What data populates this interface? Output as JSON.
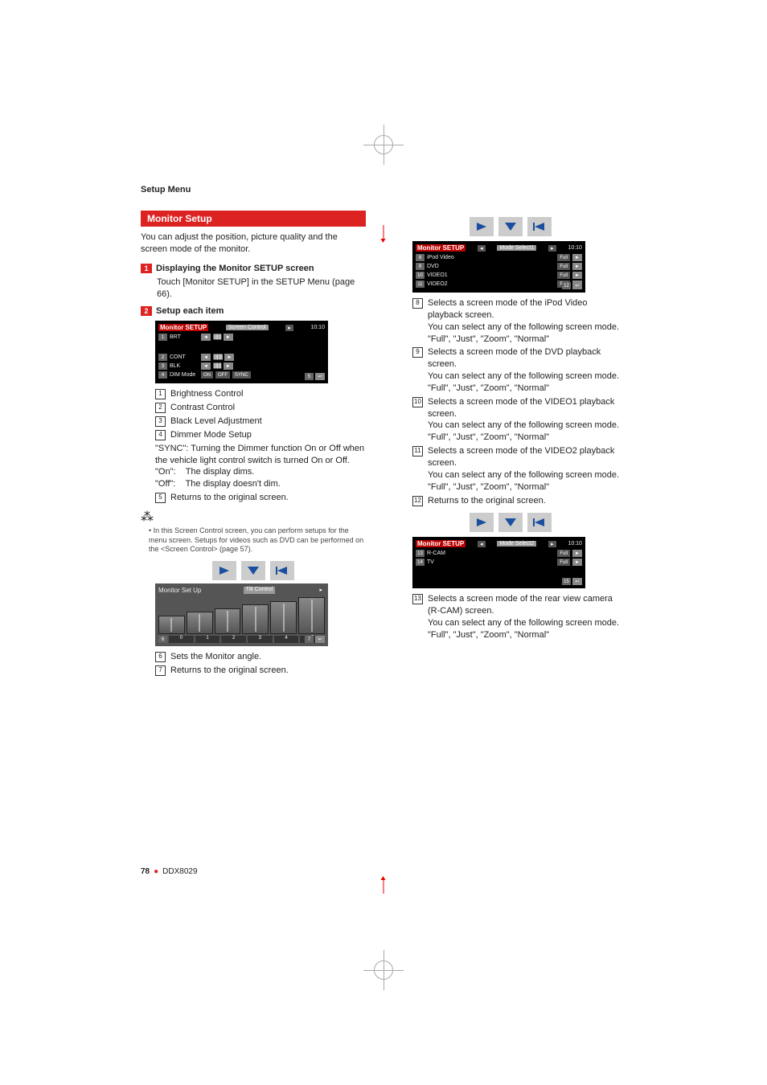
{
  "sectionTitle": "Setup Menu",
  "heading": "Monitor Setup",
  "intro": "You can adjust the position, picture quality and the screen mode of the monitor.",
  "step1": {
    "num": "1",
    "label": "Displaying the Monitor SETUP screen",
    "desc": "Touch [Monitor SETUP] in the SETUP Menu (page 66)."
  },
  "step2": {
    "num": "2",
    "label": "Setup each item"
  },
  "bb1": {
    "title": "Monitor SETUP",
    "tab": "Screen Control",
    "time": "10:10",
    "r1": {
      "idx": "1",
      "lbl": "BRT"
    },
    "r2": {
      "idx": "2",
      "lbl": "CONT"
    },
    "r3": {
      "idx": "3",
      "lbl": "BLK"
    },
    "r4": {
      "idx": "4",
      "lbl": "DIM Mode",
      "b1": "ON",
      "b2": "OFF",
      "b3": "SYNC"
    },
    "back": "5"
  },
  "refs1": [
    {
      "n": "1",
      "t": "Brightness Control"
    },
    {
      "n": "2",
      "t": "Contrast Control"
    },
    {
      "n": "3",
      "t": "Black Level Adjustment"
    },
    {
      "n": "4",
      "t": "Dimmer Mode Setup"
    }
  ],
  "dimmer": {
    "sync": "Turning the Dimmer function On or Off when the vehicle light control switch is turned On or Off.",
    "on": "The display dims.",
    "off": "The display doesn't dim."
  },
  "ref5": {
    "n": "5",
    "t": "Returns to the original screen."
  },
  "note": "In this Screen Control screen, you can perform setups for the menu screen. Setups for videos such as DVD can be performed on the <Screen Control> (page 57).",
  "tilt": {
    "title": "Monitor Set Up",
    "tab": "Tilt Control",
    "idx6": "6",
    "idx7": "7",
    "nums": [
      "0",
      "1",
      "2",
      "3",
      "4",
      "5"
    ]
  },
  "ref6": {
    "n": "6",
    "t": "Sets the Monitor angle."
  },
  "ref7": {
    "n": "7",
    "t": "Returns to the original screen."
  },
  "bb2": {
    "title": "Monitor SETUP",
    "tab": "Mode Select1",
    "time": "10:10",
    "rows": [
      {
        "idx": "8",
        "lbl": "iPod Video",
        "val": "Full"
      },
      {
        "idx": "9",
        "lbl": "DVD",
        "val": "Full"
      },
      {
        "idx": "10",
        "lbl": "VIDEO1",
        "val": "Full"
      },
      {
        "idx": "11",
        "lbl": "VIDEO2",
        "val": "Full"
      }
    ],
    "back": "12"
  },
  "refs2": [
    {
      "n": "8",
      "t1": "Selects a screen mode of the iPod Video playback screen.",
      "t2": "You can select any of the following screen mode.",
      "t3": "\"Full\", \"Just\", \"Zoom\", \"Normal\""
    },
    {
      "n": "9",
      "t1": "Selects a screen mode of the DVD playback screen.",
      "t2": "You can select any of the following screen mode.",
      "t3": "\"Full\", \"Just\", \"Zoom\", \"Normal\""
    },
    {
      "n": "10",
      "t1": "Selects a screen mode of the VIDEO1 playback screen.",
      "t2": "You can select any of the following screen mode.",
      "t3": "\"Full\", \"Just\", \"Zoom\", \"Normal\""
    },
    {
      "n": "11",
      "t1": "Selects a screen mode of the VIDEO2 playback screen.",
      "t2": "You can select any of the following screen mode.",
      "t3": "\"Full\", \"Just\", \"Zoom\", \"Normal\""
    }
  ],
  "ref12": {
    "n": "12",
    "t": "Returns to the original screen."
  },
  "bb3": {
    "title": "Monitor SETUP",
    "tab": "Mode Select2",
    "time": "10:10",
    "rows": [
      {
        "idx": "13",
        "lbl": "R-CAM",
        "val": "Full"
      },
      {
        "idx": "14",
        "lbl": "TV",
        "val": "Full"
      }
    ],
    "back": "15"
  },
  "ref13": {
    "n": "13",
    "t1": "Selects a screen mode of the rear view camera (R-CAM) screen.",
    "t2": "You can select any of the following screen mode.",
    "t3": "\"Full\", \"Just\", \"Zoom\", \"Normal\""
  },
  "footer": {
    "page": "78",
    "model": "DDX8029"
  }
}
